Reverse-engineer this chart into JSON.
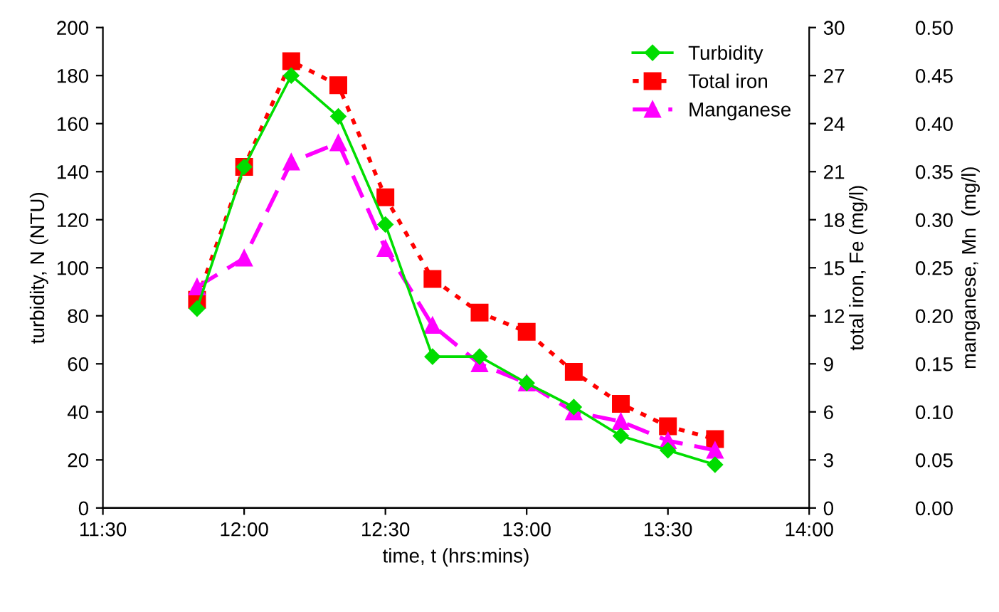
{
  "chart_data": {
    "type": "line",
    "xlabel": "time, t (hrs:mins)",
    "ylabel": "turbidity, N (NTU)",
    "y2label": "total iron, Fe (mg/l)",
    "y3label": "manganese, Mn  (mg/l)",
    "x": [
      11.8333,
      12.0,
      12.1667,
      12.3333,
      12.5,
      12.6667,
      12.8333,
      13.0,
      13.1667,
      13.3333,
      13.5,
      13.6667
    ],
    "series": [
      {
        "name": "Turbidity",
        "color": "#00dd00",
        "marker": "diamond",
        "line_style": "solid",
        "values": [
          83,
          142,
          180,
          163,
          118,
          63,
          63,
          52,
          42,
          30,
          24,
          18
        ]
      },
      {
        "name": "Total iron",
        "color": "#ff0000",
        "marker": "square",
        "line_style": "dotted",
        "axis": "y2",
        "values": [
          13.0,
          21.3,
          27.9,
          26.4,
          19.4,
          14.3,
          12.2,
          11.0,
          8.5,
          6.5,
          5.1,
          4.3
        ]
      },
      {
        "name": "Manganese",
        "color": "#ff00ff",
        "marker": "triangle",
        "line_style": "dashed",
        "axis": "y3",
        "values": [
          0.23,
          0.26,
          0.36,
          0.38,
          0.27,
          0.19,
          0.15,
          0.13,
          0.1,
          0.09,
          0.07,
          0.06
        ]
      }
    ],
    "xlim": [
      11.5,
      14.0
    ],
    "xticks": [
      {
        "value": 11.5,
        "label": "11:30"
      },
      {
        "value": 12.0,
        "label": "12:00"
      },
      {
        "value": 12.5,
        "label": "12:30"
      },
      {
        "value": 13.0,
        "label": "13:00"
      },
      {
        "value": 13.5,
        "label": "13:30"
      },
      {
        "value": 14.0,
        "label": "14:00"
      }
    ],
    "ylim": [
      0,
      200
    ],
    "yticks": [
      0,
      20,
      40,
      60,
      80,
      100,
      120,
      140,
      160,
      180,
      200
    ],
    "y2lim": [
      0,
      30
    ],
    "y2ticks": [
      0,
      3,
      6,
      9,
      12,
      15,
      18,
      21,
      24,
      27,
      30
    ],
    "y3lim": [
      0,
      0.5
    ],
    "y3ticks": [
      {
        "value": 0,
        "label": "0.00"
      },
      {
        "value": 0.05,
        "label": "0.05"
      },
      {
        "value": 0.1,
        "label": "0.10"
      },
      {
        "value": 0.15,
        "label": "0.15"
      },
      {
        "value": 0.2,
        "label": "0.20"
      },
      {
        "value": 0.25,
        "label": "0.25"
      },
      {
        "value": 0.3,
        "label": "0.30"
      },
      {
        "value": 0.35,
        "label": "0.35"
      },
      {
        "value": 0.4,
        "label": "0.40"
      },
      {
        "value": 0.45,
        "label": "0.45"
      },
      {
        "value": 0.5,
        "label": "0.50"
      }
    ],
    "grid": false,
    "legend": "top right"
  }
}
